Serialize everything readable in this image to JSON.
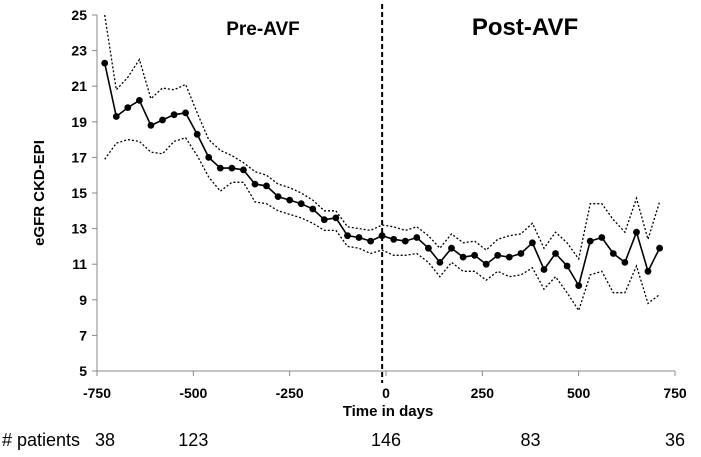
{
  "chart_data": {
    "type": "line",
    "title": "",
    "xlabel": "Time in days",
    "ylabel": "eGFR CKD-EPI",
    "xlim": [
      -750,
      750
    ],
    "ylim": [
      5,
      25
    ],
    "x_ticks": [
      -750,
      -500,
      -250,
      0,
      250,
      500,
      750
    ],
    "x_tick_labels": [
      "-750",
      "-500",
      "-250",
      "0",
      "250",
      "500",
      "750"
    ],
    "y_ticks": [
      5,
      7,
      9,
      11,
      13,
      15,
      17,
      19,
      21,
      23,
      25
    ],
    "y_tick_labels": [
      "5",
      "7",
      "9",
      "11",
      "13",
      "15",
      "17",
      "19",
      "21",
      "23",
      "25"
    ],
    "divider_x": -10,
    "phase_labels": {
      "pre": "Pre-AVF",
      "post": "Post-AVF"
    },
    "series": [
      {
        "name": "mean",
        "style": "solid-markers",
        "x": [
          -730,
          -700,
          -670,
          -640,
          -610,
          -580,
          -550,
          -520,
          -490,
          -460,
          -430,
          -400,
          -370,
          -340,
          -310,
          -280,
          -250,
          -220,
          -190,
          -160,
          -130,
          -100,
          -70,
          -40,
          -10,
          20,
          50,
          80,
          110,
          140,
          170,
          200,
          230,
          260,
          290,
          320,
          350,
          380,
          410,
          440,
          470,
          500,
          530,
          560,
          590,
          620,
          650,
          680,
          710
        ],
        "values": [
          22.3,
          19.3,
          19.8,
          20.2,
          18.8,
          19.1,
          19.4,
          19.5,
          18.3,
          17.0,
          16.4,
          16.4,
          16.3,
          15.5,
          15.4,
          14.8,
          14.6,
          14.4,
          14.1,
          13.5,
          13.6,
          12.6,
          12.5,
          12.3,
          12.6,
          12.4,
          12.3,
          12.5,
          11.9,
          11.1,
          11.9,
          11.4,
          11.5,
          11.0,
          11.5,
          11.4,
          11.6,
          12.2,
          10.7,
          11.6,
          10.9,
          9.8,
          12.3,
          12.5,
          11.6,
          11.1,
          12.8,
          10.6,
          11.9
        ]
      },
      {
        "name": "upper bound",
        "style": "dotted",
        "x": [
          -730,
          -700,
          -670,
          -640,
          -610,
          -580,
          -550,
          -520,
          -490,
          -460,
          -430,
          -400,
          -370,
          -340,
          -310,
          -280,
          -250,
          -220,
          -190,
          -160,
          -130,
          -100,
          -70,
          -40,
          -10,
          20,
          50,
          80,
          110,
          140,
          170,
          200,
          230,
          260,
          290,
          320,
          350,
          380,
          410,
          440,
          470,
          500,
          530,
          560,
          590,
          620,
          650,
          680,
          710
        ],
        "values": [
          25.0,
          20.8,
          21.5,
          22.5,
          20.3,
          20.9,
          20.8,
          21.1,
          19.5,
          18.0,
          17.4,
          17.1,
          16.7,
          16.2,
          16.0,
          15.5,
          15.3,
          15.0,
          14.6,
          14.0,
          14.0,
          13.1,
          13.0,
          12.9,
          13.2,
          13.1,
          12.9,
          13.1,
          12.6,
          11.9,
          12.7,
          12.2,
          12.3,
          11.8,
          12.4,
          12.6,
          12.7,
          13.3,
          11.9,
          12.8,
          12.2,
          11.3,
          14.4,
          14.4,
          13.5,
          12.8,
          14.7,
          12.4,
          14.5
        ]
      },
      {
        "name": "lower bound",
        "style": "dotted",
        "x": [
          -730,
          -700,
          -670,
          -640,
          -610,
          -580,
          -550,
          -520,
          -490,
          -460,
          -430,
          -400,
          -370,
          -340,
          -310,
          -280,
          -250,
          -220,
          -190,
          -160,
          -130,
          -100,
          -70,
          -40,
          -10,
          20,
          50,
          80,
          110,
          140,
          170,
          200,
          230,
          260,
          290,
          320,
          350,
          380,
          410,
          440,
          470,
          500,
          530,
          560,
          590,
          620,
          650,
          680,
          710
        ],
        "values": [
          16.9,
          17.8,
          18.0,
          17.9,
          17.3,
          17.2,
          17.9,
          18.1,
          17.1,
          15.9,
          15.1,
          15.6,
          15.6,
          14.5,
          14.4,
          14.0,
          13.8,
          13.6,
          13.3,
          12.9,
          12.9,
          12.0,
          11.9,
          11.6,
          11.8,
          11.5,
          11.5,
          11.6,
          11.1,
          10.3,
          11.1,
          10.6,
          10.6,
          10.1,
          10.6,
          10.3,
          10.4,
          10.8,
          9.6,
          10.3,
          9.4,
          8.4,
          10.4,
          10.6,
          9.4,
          9.4,
          10.9,
          8.8,
          9.3
        ]
      }
    ],
    "patients_label": "# patients",
    "patients": [
      {
        "x": -750,
        "count": "38"
      },
      {
        "x": -500,
        "count": "123"
      },
      {
        "x": 0,
        "count": "146"
      },
      {
        "x": 375,
        "count": "83"
      },
      {
        "x": 750,
        "count": "36"
      }
    ]
  }
}
